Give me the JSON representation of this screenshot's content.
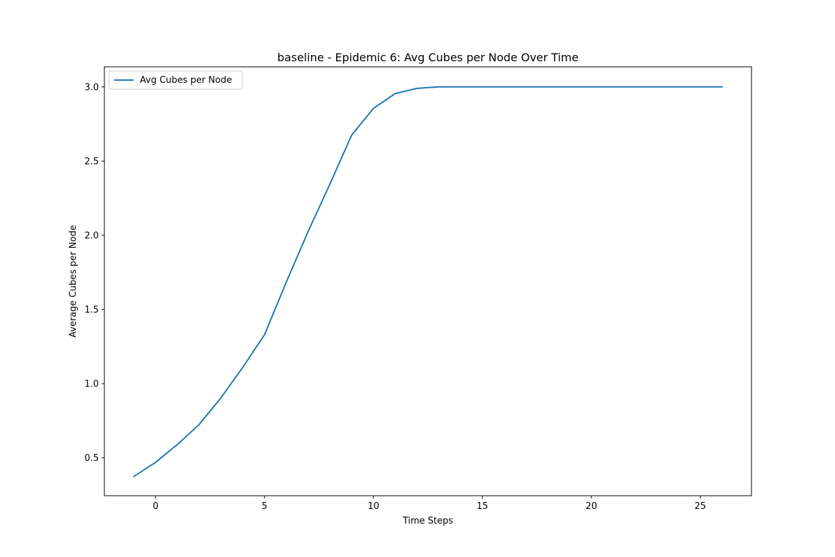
{
  "chart_data": {
    "type": "line",
    "title": "baseline - Epidemic 6: Avg Cubes per Node Over Time",
    "xlabel": "Time Steps",
    "ylabel": "Average Cubes per Node",
    "xlim": [
      -2.35,
      27.35
    ],
    "ylim": [
      0.245,
      3.135
    ],
    "xticks": [
      0,
      5,
      10,
      15,
      20,
      25
    ],
    "yticks": [
      0.5,
      1.0,
      1.5,
      2.0,
      2.5,
      3.0
    ],
    "xtick_labels": [
      "0",
      "5",
      "10",
      "15",
      "20",
      "25"
    ],
    "ytick_labels": [
      "0.5",
      "1.0",
      "1.5",
      "2.0",
      "2.5",
      "3.0"
    ],
    "grid": false,
    "legend_position": "upper-left",
    "series": [
      {
        "name": "Avg Cubes per Node",
        "color": "#1f77b4",
        "x": [
          -1,
          0,
          1,
          2,
          3,
          4,
          5,
          6,
          7,
          8,
          9,
          10,
          11,
          12,
          13,
          14,
          15,
          16,
          17,
          18,
          19,
          20,
          21,
          22,
          23,
          24,
          25,
          26
        ],
        "y": [
          0.375,
          0.47,
          0.59,
          0.725,
          0.905,
          1.11,
          1.33,
          1.685,
          2.025,
          2.345,
          2.675,
          2.855,
          2.955,
          2.99,
          3.0,
          3.0,
          3.0,
          3.0,
          3.0,
          3.0,
          3.0,
          3.0,
          3.0,
          3.0,
          3.0,
          3.0,
          3.0,
          3.0
        ]
      }
    ]
  }
}
